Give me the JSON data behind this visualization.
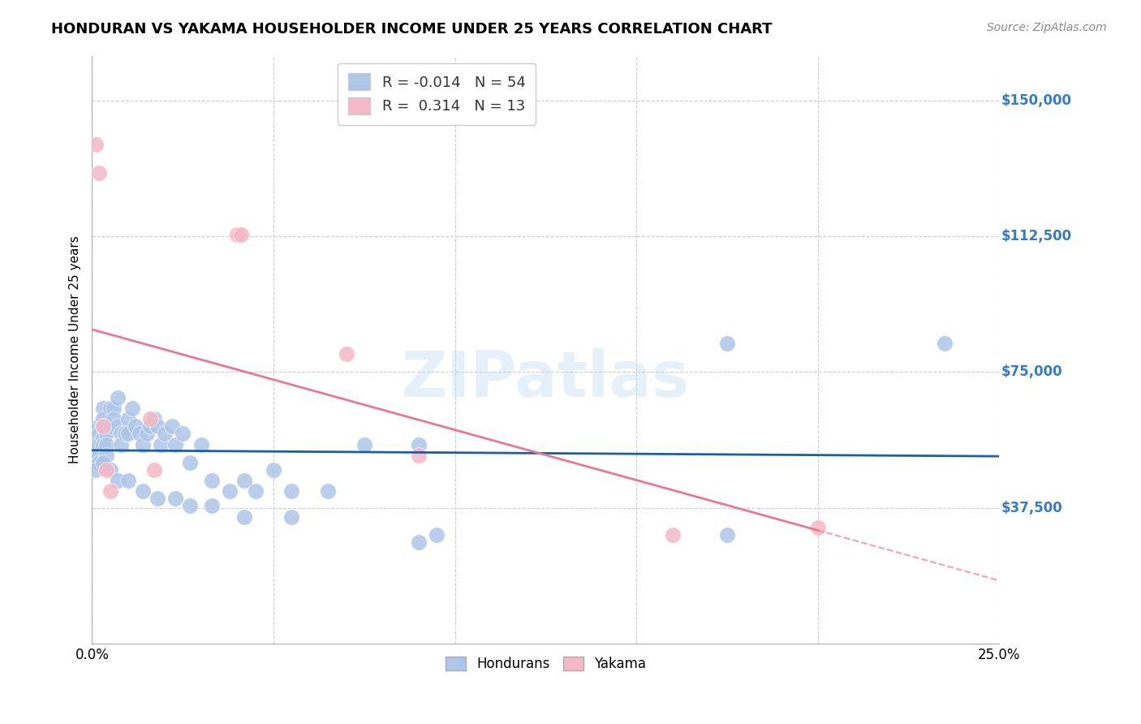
{
  "title": "HONDURAN VS YAKAMA HOUSEHOLDER INCOME UNDER 25 YEARS CORRELATION CHART",
  "source": "Source: ZipAtlas.com",
  "ylabel": "Householder Income Under 25 years",
  "xlim": [
    0.0,
    0.25
  ],
  "ylim": [
    0,
    162500
  ],
  "yticks": [
    0,
    37500,
    75000,
    112500,
    150000
  ],
  "ytick_labels": [
    "",
    "$37,500",
    "$75,000",
    "$112,500",
    "$150,000"
  ],
  "xticks": [
    0.0,
    0.05,
    0.1,
    0.15,
    0.2,
    0.25
  ],
  "xtick_labels": [
    "0.0%",
    "",
    "",
    "",
    "",
    "25.0%"
  ],
  "honduran_R": -0.014,
  "honduran_N": 54,
  "yakama_R": 0.314,
  "yakama_N": 13,
  "honduran_color": "#aec6e8",
  "yakama_color": "#f4b8c8",
  "honduran_line_color": "#1a5fa8",
  "yakama_line_color": "#e8798e",
  "watermark": "ZIPatlas",
  "honduran_x": [
    0.001,
    0.001,
    0.001,
    0.002,
    0.002,
    0.002,
    0.002,
    0.002,
    0.003,
    0.003,
    0.003,
    0.003,
    0.003,
    0.004,
    0.004,
    0.004,
    0.005,
    0.005,
    0.006,
    0.006,
    0.007,
    0.007,
    0.008,
    0.008,
    0.009,
    0.01,
    0.01,
    0.011,
    0.012,
    0.013,
    0.014,
    0.015,
    0.016,
    0.017,
    0.018,
    0.019,
    0.02,
    0.022,
    0.023,
    0.025,
    0.027,
    0.03,
    0.033,
    0.038,
    0.042,
    0.045,
    0.05,
    0.055,
    0.065,
    0.075,
    0.09,
    0.095,
    0.175,
    0.235
  ],
  "honduran_y": [
    58000,
    55000,
    52000,
    60000,
    58000,
    55000,
    52000,
    50000,
    65000,
    62000,
    60000,
    57000,
    55000,
    58000,
    55000,
    52000,
    65000,
    60000,
    65000,
    62000,
    68000,
    60000,
    58000,
    55000,
    58000,
    62000,
    58000,
    65000,
    60000,
    58000,
    55000,
    58000,
    60000,
    62000,
    60000,
    55000,
    58000,
    60000,
    55000,
    58000,
    50000,
    55000,
    45000,
    42000,
    45000,
    42000,
    48000,
    42000,
    42000,
    55000,
    55000,
    30000,
    83000,
    83000
  ],
  "honduran_y_low": [
    0.001,
    0.003,
    0.005,
    0.007,
    0.01,
    0.014,
    0.018,
    0.023,
    0.027,
    0.033,
    0.042,
    0.055,
    0.09,
    0.175
  ],
  "honduran_y_low_vals": [
    48000,
    50000,
    48000,
    45000,
    45000,
    42000,
    40000,
    40000,
    38000,
    38000,
    35000,
    35000,
    28000,
    30000
  ],
  "yakama_x": [
    0.001,
    0.002,
    0.003,
    0.004,
    0.005,
    0.016,
    0.017,
    0.04,
    0.041,
    0.07,
    0.09,
    0.16,
    0.2
  ],
  "yakama_y": [
    138000,
    130000,
    60000,
    48000,
    42000,
    62000,
    48000,
    113000,
    113000,
    80000,
    52000,
    30000,
    32000
  ]
}
